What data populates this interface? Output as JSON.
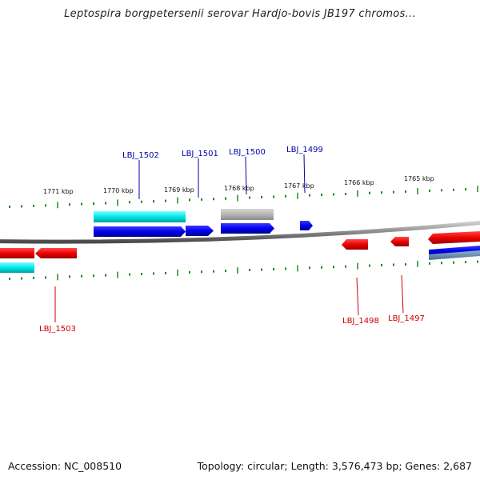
{
  "title": "Leptospira borgpetersenii serovar Hardjo-bovis JB197 chromos...",
  "footer": {
    "accession": "Accession: NC_008510",
    "summary": "Topology: circular; Length: 3,576,473 bp; Genes: 2,687"
  },
  "colors": {
    "forward_gene": "#0000ee",
    "reverse_gene": "#ee0000",
    "cyan_feature": "#00e5e5",
    "gray_feature": "#b0b0b0",
    "tick": "#1a8a1a",
    "backbone": "#777777",
    "label_forward": "#0000aa",
    "label_reverse": "#cc0000"
  },
  "scale": {
    "labels": [
      "1771 kbp",
      "1770 kbp",
      "1769 kbp",
      "1768 kbp",
      "1767 kbp",
      "1766 kbp",
      "1765 kbp"
    ]
  },
  "gene_labels": {
    "forward": [
      "LBJ_1502",
      "LBJ_1501",
      "LBJ_1500",
      "LBJ_1499"
    ],
    "reverse": [
      "LBJ_1503",
      "LBJ_1498",
      "LBJ_1497"
    ]
  }
}
